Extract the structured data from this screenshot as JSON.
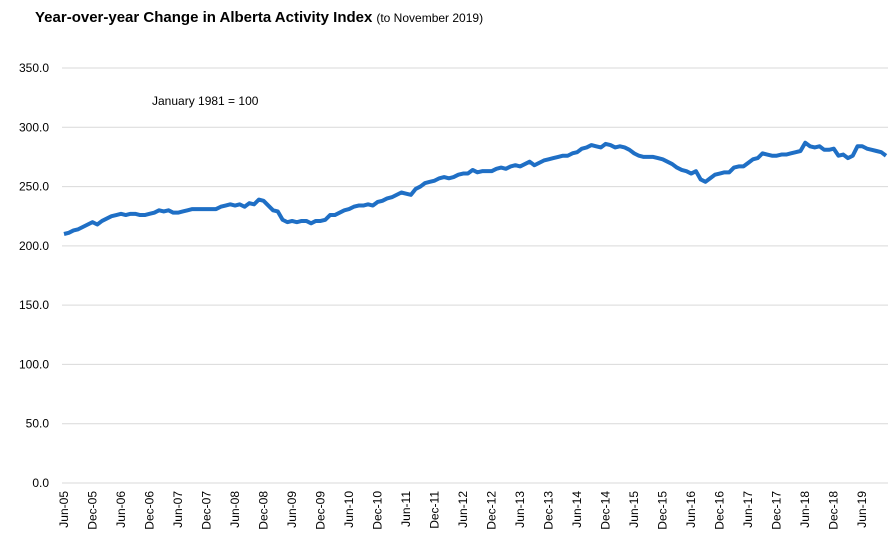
{
  "chart_data": {
    "type": "line",
    "title": "Year-over-year Change in Alberta Activity Index",
    "subtitle": "(to November 2019)",
    "annotation": "January 1981 = 100",
    "categories": [
      "Jun-05",
      null,
      null,
      null,
      null,
      null,
      "Dec-05",
      null,
      null,
      null,
      null,
      null,
      "Jun-06",
      null,
      null,
      null,
      null,
      null,
      "Dec-06",
      null,
      null,
      null,
      null,
      null,
      "Jun-07",
      null,
      null,
      null,
      null,
      null,
      "Dec-07",
      null,
      null,
      null,
      null,
      null,
      "Jun-08",
      null,
      null,
      null,
      null,
      null,
      "Dec-08",
      null,
      null,
      null,
      null,
      null,
      "Jun-09",
      null,
      null,
      null,
      null,
      null,
      "Dec-09",
      null,
      null,
      null,
      null,
      null,
      "Jun-10",
      null,
      null,
      null,
      null,
      null,
      "Dec-10",
      null,
      null,
      null,
      null,
      null,
      "Jun-11",
      null,
      null,
      null,
      null,
      null,
      "Dec-11",
      null,
      null,
      null,
      null,
      null,
      "Jun-12",
      null,
      null,
      null,
      null,
      null,
      "Dec-12",
      null,
      null,
      null,
      null,
      null,
      "Jun-13",
      null,
      null,
      null,
      null,
      null,
      "Dec-13",
      null,
      null,
      null,
      null,
      null,
      "Jun-14",
      null,
      null,
      null,
      null,
      null,
      "Dec-14",
      null,
      null,
      null,
      null,
      null,
      "Jun-15",
      null,
      null,
      null,
      null,
      null,
      "Dec-15",
      null,
      null,
      null,
      null,
      null,
      "Jun-16",
      null,
      null,
      null,
      null,
      null,
      "Dec-16",
      null,
      null,
      null,
      null,
      null,
      "Jun-17",
      null,
      null,
      null,
      null,
      null,
      "Dec-17",
      null,
      null,
      null,
      null,
      null,
      "Jun-18",
      null,
      null,
      null,
      null,
      null,
      "Dec-18",
      null,
      null,
      null,
      null,
      null,
      "Jun-19",
      null,
      null,
      null,
      null,
      null
    ],
    "series": [
      {
        "color": "#1f6fc5",
        "values": [
          210,
          211,
          213,
          214,
          216,
          218,
          220,
          218,
          221,
          223,
          225,
          226,
          227,
          226,
          227,
          227,
          226,
          226,
          227,
          228,
          230,
          229,
          230,
          228,
          228,
          229,
          230,
          231,
          231,
          231,
          231,
          231,
          231,
          233,
          234,
          235,
          234,
          235,
          233,
          236,
          235,
          239,
          238,
          234,
          230,
          229,
          222,
          220,
          221,
          220,
          221,
          221,
          219,
          221,
          221,
          222,
          226,
          226,
          228,
          230,
          231,
          233,
          234,
          234,
          235,
          234,
          237,
          238,
          240,
          241,
          243,
          245,
          244,
          243,
          248,
          250,
          253,
          254,
          255,
          257,
          258,
          257,
          258,
          260,
          261,
          261,
          264,
          262,
          263,
          263,
          263,
          265,
          266,
          265,
          267,
          268,
          267,
          269,
          271,
          268,
          270,
          272,
          273,
          274,
          275,
          276,
          276,
          278,
          279,
          282,
          283,
          285,
          284,
          283,
          286,
          285,
          283,
          284,
          283,
          281,
          278,
          276,
          275,
          275,
          275,
          274,
          273,
          271,
          269,
          266,
          264,
          263,
          261,
          263,
          256,
          254,
          257,
          260,
          261,
          262,
          262,
          266,
          267,
          267,
          270,
          273,
          274,
          278,
          277,
          276,
          276,
          277,
          277,
          278,
          279,
          280,
          287,
          284,
          283,
          284,
          281,
          281,
          282,
          276,
          277,
          274,
          276,
          284,
          284,
          282,
          281,
          280,
          279,
          276
        ]
      }
    ],
    "ylim": [
      0,
      350
    ],
    "yticks": [
      {
        "value": 0,
        "label": "0.0"
      },
      {
        "value": 50,
        "label": "50.0"
      },
      {
        "value": 100,
        "label": "100.0"
      },
      {
        "value": 150,
        "label": "150.0"
      },
      {
        "value": 200,
        "label": "200.0"
      },
      {
        "value": 250,
        "label": "250.0"
      },
      {
        "value": 300,
        "label": "300.0"
      },
      {
        "value": 350,
        "label": "350.0"
      }
    ],
    "grid": true
  }
}
